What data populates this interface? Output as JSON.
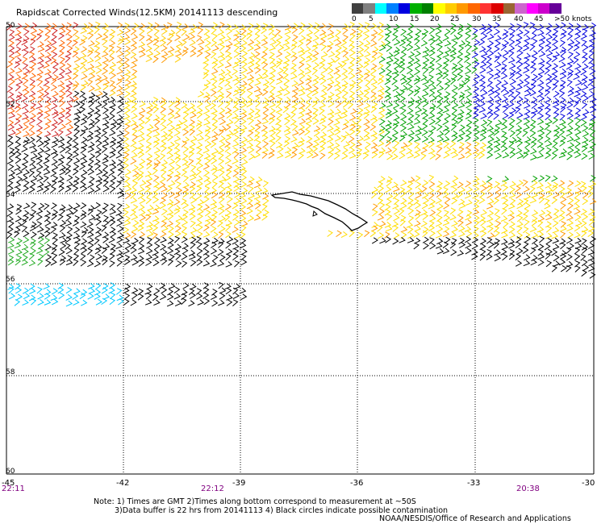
{
  "title": "Rapidscat Corrected Winds(12.5KM) 20141113 descending",
  "speed_scale": {
    "labels": [
      "0",
      "5",
      "10",
      "15",
      "20",
      "25",
      "30",
      "35",
      "40",
      "45",
      ">50 knots"
    ],
    "colors": [
      "#404040",
      "#808080",
      "#00ffff",
      "#0080ff",
      "#0000e0",
      "#00b000",
      "#008000",
      "#ffff00",
      "#ffcc00",
      "#ff9900",
      "#ff6600",
      "#ff3333",
      "#dd0000",
      "#996633",
      "#cc66cc",
      "#ff00ff",
      "#cc00cc",
      "#660099"
    ]
  },
  "axes": {
    "lat_labels": [
      "50",
      "52",
      "54",
      "56",
      "58",
      "60"
    ],
    "lon_labels": [
      "-45",
      "-42",
      "-39",
      "-36",
      "-33",
      "-30"
    ]
  },
  "time_labels": [
    "22:11",
    "22:12",
    "20:38"
  ],
  "notes": {
    "line1": "Note: 1) Times are GMT 2)Times along bottom correspond to measurement at ~50S",
    "line2": "3)Data buffer is 22 hrs from 20141113 4) Black circles indicate possible contamination"
  },
  "credit": "NOAA/NESDIS/Office of Research and Applications"
}
